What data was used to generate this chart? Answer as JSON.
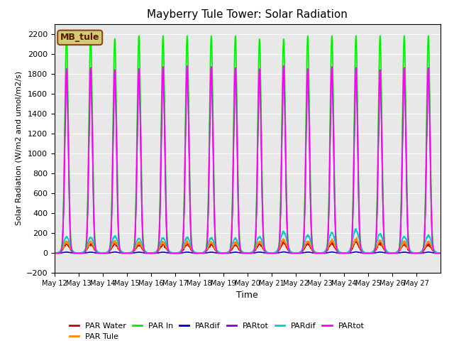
{
  "title": "Mayberry Tule Tower: Solar Radiation",
  "xlabel": "Time",
  "ylabel": "Solar Radiation (W/m2 and umol/m2/s)",
  "ylim": [
    -200,
    2300
  ],
  "yticks": [
    -200,
    0,
    200,
    400,
    600,
    800,
    1000,
    1200,
    1400,
    1600,
    1800,
    2000,
    2200
  ],
  "num_days": 16,
  "background_color": "#e8e8e8",
  "legend_label": "MB_tule",
  "legend_box_color": "#d4c875",
  "legend_box_edge": "#8B4513",
  "series": [
    {
      "name": "PAR Water",
      "color": "#cc0000",
      "lw": 1.2
    },
    {
      "name": "PAR Tule",
      "color": "#ff8800",
      "lw": 1.2
    },
    {
      "name": "PAR In",
      "color": "#00ee00",
      "lw": 1.2
    },
    {
      "name": "PARdif",
      "color": "#0000cc",
      "lw": 1.2
    },
    {
      "name": "PARtot",
      "color": "#8800cc",
      "lw": 1.2
    },
    {
      "name": "PARdif",
      "color": "#00cccc",
      "lw": 1.2
    },
    {
      "name": "PARtot",
      "color": "#ff00ff",
      "lw": 1.2
    }
  ],
  "tick_dates": [
    "May 12",
    "May 13",
    "May 14",
    "May 15",
    "May 16",
    "May 17",
    "May 18",
    "May 19",
    "May 20",
    "May 21",
    "May 22",
    "May 23",
    "May 24",
    "May 25",
    "May 26",
    "May 27"
  ],
  "tick_positions": [
    0,
    1,
    2,
    3,
    4,
    5,
    6,
    7,
    8,
    9,
    10,
    11,
    12,
    13,
    14,
    15
  ],
  "par_in_peaks": [
    2180,
    2180,
    2150,
    2180,
    2180,
    2180,
    2180,
    2180,
    2150,
    2150,
    2180,
    2180,
    2180,
    2180,
    2180,
    2180
  ],
  "partot_mag_peaks": [
    1850,
    1860,
    1840,
    1850,
    1870,
    1880,
    1870,
    1860,
    1850,
    1880,
    1850,
    1870,
    1860,
    1840,
    1860,
    1860
  ],
  "partot_pur_peaks": [
    1830,
    1840,
    1820,
    1830,
    1850,
    1860,
    1850,
    1840,
    1830,
    1860,
    1830,
    1850,
    1840,
    1820,
    1840,
    1840
  ],
  "pardif_cy_peaks": [
    160,
    155,
    165,
    145,
    150,
    155,
    150,
    145,
    160,
    210,
    175,
    200,
    230,
    190,
    160,
    175
  ],
  "par_water_peaks": [
    90,
    88,
    95,
    82,
    85,
    88,
    85,
    82,
    88,
    105,
    92,
    100,
    110,
    95,
    88,
    90
  ],
  "par_tule_peaks": [
    110,
    108,
    118,
    100,
    105,
    108,
    105,
    100,
    108,
    130,
    115,
    122,
    135,
    118,
    108,
    112
  ],
  "pardif_blue_peaks": [
    8,
    7,
    9,
    7,
    7,
    8,
    7,
    7,
    8,
    10,
    8,
    9,
    10,
    8,
    7,
    8
  ]
}
